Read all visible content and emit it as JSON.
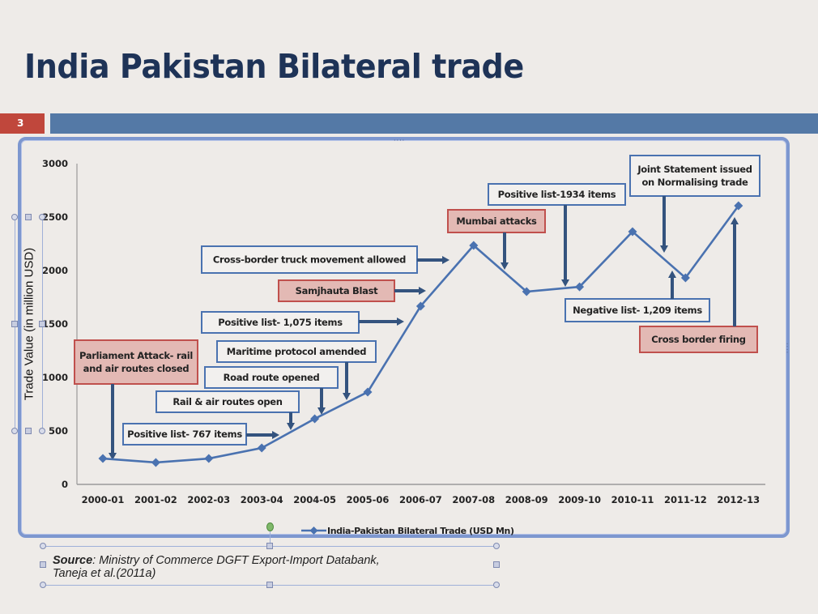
{
  "slide": {
    "title": "India Pakistan Bilateral trade",
    "number": "3",
    "colors": {
      "title": "#1e3357",
      "number_bg": "#c0473c",
      "bar": "#5479a6",
      "frame": "#7d97cf"
    }
  },
  "source": {
    "label": "Source",
    "text": ": Ministry of Commerce DGFT Export-Import Databank,",
    "line2": "Taneja et al.(2011a)"
  },
  "chart_data": {
    "type": "line",
    "title": "",
    "xlabel": "",
    "ylabel": "Trade Value (in million USD)",
    "ylim": [
      0,
      3000
    ],
    "yticks": [
      0,
      500,
      1000,
      1500,
      2000,
      2500,
      3000
    ],
    "grid": false,
    "legend_position": "bottom",
    "categories": [
      "2000-01",
      "2001-02",
      "2002-03",
      "2003-04",
      "2004-05",
      "2005-06",
      "2006-07",
      "2007-08",
      "2008-09",
      "2009-10",
      "2010-11",
      "2011-12",
      "2012-13"
    ],
    "series": [
      {
        "name": "India-Pakistan Bilateral Trade (USD Mn)",
        "color": "#4a72b0",
        "marker": "diamond",
        "values": [
          242,
          205,
          242,
          341,
          614,
          864,
          1667,
          2235,
          1803,
          1848,
          2364,
          1932,
          2606
        ]
      }
    ],
    "annotations": [
      {
        "text": "Parliament Attack- rail and air routes closed",
        "kind": "negative",
        "target": "2000-01"
      },
      {
        "text": "Positive list- 767 items",
        "kind": "positive",
        "target": "2003-04"
      },
      {
        "text": "Rail & air routes open",
        "kind": "positive",
        "target": "2004-05"
      },
      {
        "text": "Road route opened",
        "kind": "positive",
        "target": "2004-05"
      },
      {
        "text": "Maritime protocol amended",
        "kind": "positive",
        "target": "2005-06"
      },
      {
        "text": "Positive list- 1,075 items",
        "kind": "positive",
        "target": "2006-07"
      },
      {
        "text": "Samjhauta Blast",
        "kind": "negative",
        "target": "2006-07"
      },
      {
        "text": "Cross-border truck movement allowed",
        "kind": "positive",
        "target": "2006-07"
      },
      {
        "text": "Mumbai attacks",
        "kind": "negative",
        "target": "2008-09"
      },
      {
        "text": "Positive list-1934 items",
        "kind": "positive",
        "target": "2009-10"
      },
      {
        "text": "Joint Statement issued on Normalising trade",
        "kind": "positive",
        "target": "2011-12"
      },
      {
        "text": "Negative list- 1,209 items",
        "kind": "positive",
        "target": "2011-12"
      },
      {
        "text": "Cross border firing",
        "kind": "negative",
        "target": "2012-13"
      }
    ]
  }
}
